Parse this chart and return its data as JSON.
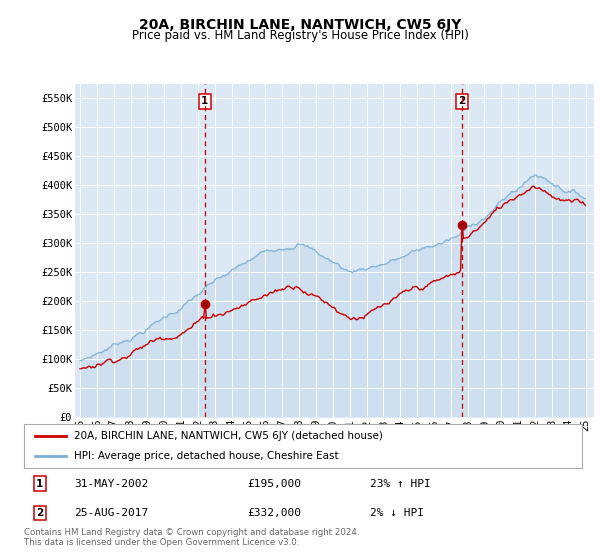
{
  "title": "20A, BIRCHIN LANE, NANTWICH, CW5 6JY",
  "subtitle": "Price paid vs. HM Land Registry's House Price Index (HPI)",
  "ylabel_ticks": [
    "£0",
    "£50K",
    "£100K",
    "£150K",
    "£200K",
    "£250K",
    "£300K",
    "£350K",
    "£400K",
    "£450K",
    "£500K",
    "£550K"
  ],
  "ytick_values": [
    0,
    50000,
    100000,
    150000,
    200000,
    250000,
    300000,
    350000,
    400000,
    450000,
    500000,
    550000
  ],
  "ylim": [
    0,
    575000
  ],
  "xlim_start": 1994.7,
  "xlim_end": 2025.5,
  "bg_color": "#dde8f5",
  "grid_color": "#ffffff",
  "sale1_x": 2002.41,
  "sale1_y": 195000,
  "sale2_x": 2017.65,
  "sale2_y": 332000,
  "line1_color": "#cc0000",
  "line2_color": "#7ab0d4",
  "legend1_label": "20A, BIRCHIN LANE, NANTWICH, CW5 6JY (detached house)",
  "legend2_label": "HPI: Average price, detached house, Cheshire East",
  "sale1_date": "31-MAY-2002",
  "sale1_price": "£195,000",
  "sale1_hpi": "23% ↑ HPI",
  "sale2_date": "25-AUG-2017",
  "sale2_price": "£332,000",
  "sale2_hpi": "2% ↓ HPI",
  "footnote": "Contains HM Land Registry data © Crown copyright and database right 2024.\nThis data is licensed under the Open Government Licence v3.0.",
  "xtick_labels": [
    "95",
    "96",
    "97",
    "98",
    "99",
    "00",
    "01",
    "02",
    "03",
    "04",
    "05",
    "06",
    "07",
    "08",
    "09",
    "10",
    "11",
    "12",
    "13",
    "14",
    "15",
    "16",
    "17",
    "18",
    "19",
    "20",
    "21",
    "22",
    "23",
    "24",
    "25"
  ],
  "xtick_years": [
    1995,
    1996,
    1997,
    1998,
    1999,
    2000,
    2001,
    2002,
    2003,
    2004,
    2005,
    2006,
    2007,
    2008,
    2009,
    2010,
    2011,
    2012,
    2013,
    2014,
    2015,
    2016,
    2017,
    2018,
    2019,
    2020,
    2021,
    2022,
    2023,
    2024,
    2025
  ]
}
